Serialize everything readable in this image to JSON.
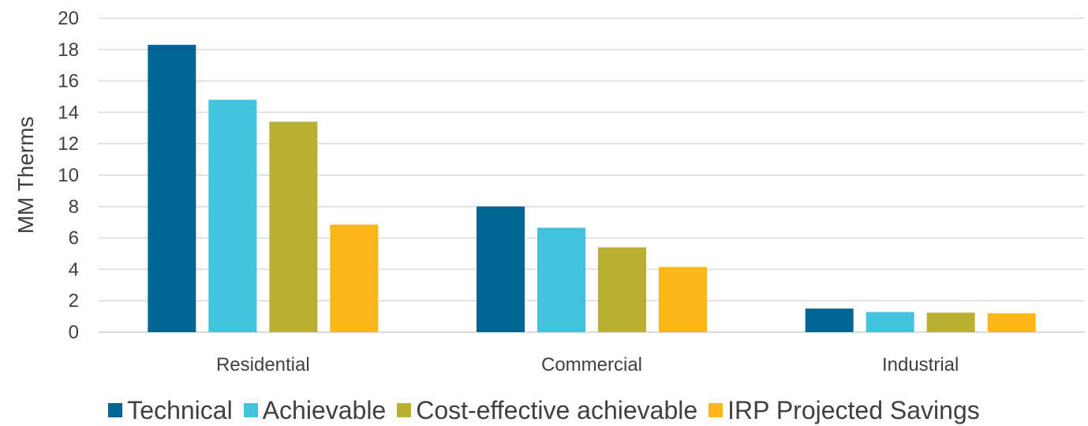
{
  "chart_data": {
    "type": "bar",
    "ylabel": "MM Therms",
    "xlabel": "",
    "ylim": [
      0,
      20
    ],
    "yticks": [
      0,
      2,
      4,
      6,
      8,
      10,
      12,
      14,
      16,
      18,
      20
    ],
    "categories": [
      "Residential",
      "Commercial",
      "Industrial"
    ],
    "series": [
      {
        "name": "Technical",
        "color": "#006494",
        "values": [
          18.3,
          8.0,
          1.5
        ]
      },
      {
        "name": "Achievable",
        "color": "#42C3DD",
        "values": [
          14.8,
          6.65,
          1.28
        ]
      },
      {
        "name": "Cost-effective achievable",
        "color": "#B9AF33",
        "values": [
          13.4,
          5.4,
          1.24
        ]
      },
      {
        "name": "IRP Projected Savings",
        "color": "#FBB717",
        "values": [
          6.85,
          4.15,
          1.2
        ]
      }
    ],
    "grid": true,
    "legend_position": "bottom"
  }
}
